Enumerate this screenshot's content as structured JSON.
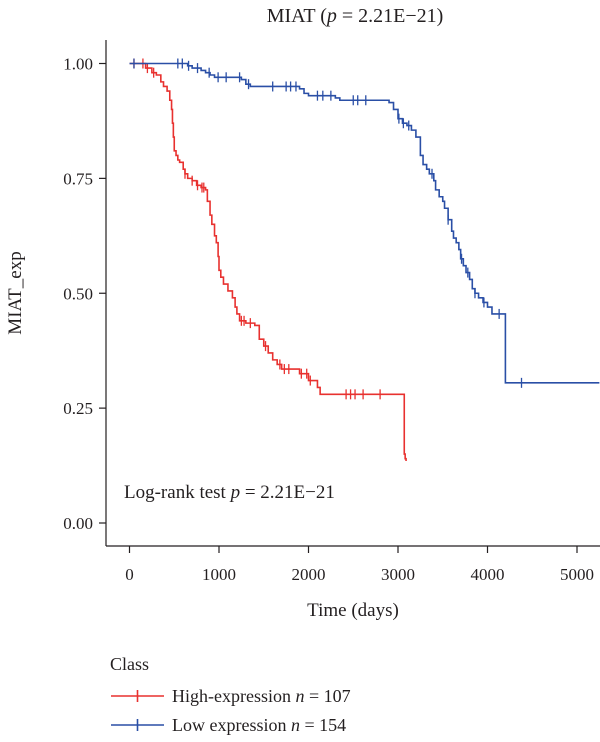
{
  "chart_data": {
    "type": "line",
    "subtype": "kaplan-meier",
    "title": {
      "prefix": "MIAT (",
      "p_symbol": "p",
      "equals_value": " = 2.21E−21)"
    },
    "xlabel": "Time (days)",
    "ylabel": "MIAT_exp",
    "xlim": [
      -200,
      5250
    ],
    "ylim": [
      -0.05,
      1.05
    ],
    "x_ticks": [
      0,
      1000,
      2000,
      3000,
      4000,
      5000
    ],
    "x_tick_labels": [
      "0",
      "1000",
      "2000",
      "3000",
      "4000",
      "5000"
    ],
    "y_ticks": [
      0,
      0.25,
      0.5,
      0.75,
      1.0
    ],
    "y_tick_labels": [
      "0.00",
      "0.25",
      "0.50",
      "0.75",
      "1.00"
    ],
    "annotation": {
      "prefix": "Log-rank test ",
      "p_symbol": "p",
      "equals_value": " = 2.21E−21"
    },
    "legend": {
      "title": "Class",
      "position": "bottom-left",
      "entries": [
        {
          "label": "High-expression ",
          "n_symbol": "n",
          "n_value": " = 107",
          "color": "#e8312f"
        },
        {
          "label": "Low expression ",
          "n_symbol": "n",
          "n_value": " = 154",
          "color": "#2a4fa6"
        }
      ]
    },
    "series": [
      {
        "name": "High-expression",
        "color": "#e8312f",
        "steps": [
          [
            0,
            1.0
          ],
          [
            100,
            1.0
          ],
          [
            180,
            0.99
          ],
          [
            250,
            0.98
          ],
          [
            300,
            0.975
          ],
          [
            350,
            0.96
          ],
          [
            380,
            0.95
          ],
          [
            420,
            0.94
          ],
          [
            450,
            0.92
          ],
          [
            470,
            0.9
          ],
          [
            480,
            0.87
          ],
          [
            490,
            0.84
          ],
          [
            500,
            0.81
          ],
          [
            520,
            0.8
          ],
          [
            540,
            0.79
          ],
          [
            560,
            0.785
          ],
          [
            600,
            0.77
          ],
          [
            620,
            0.76
          ],
          [
            650,
            0.75
          ],
          [
            700,
            0.745
          ],
          [
            750,
            0.735
          ],
          [
            800,
            0.73
          ],
          [
            850,
            0.725
          ],
          [
            870,
            0.7
          ],
          [
            900,
            0.67
          ],
          [
            920,
            0.65
          ],
          [
            950,
            0.625
          ],
          [
            970,
            0.61
          ],
          [
            990,
            0.58
          ],
          [
            1000,
            0.55
          ],
          [
            1020,
            0.535
          ],
          [
            1050,
            0.52
          ],
          [
            1100,
            0.505
          ],
          [
            1150,
            0.49
          ],
          [
            1180,
            0.47
          ],
          [
            1200,
            0.455
          ],
          [
            1230,
            0.44
          ],
          [
            1300,
            0.435
          ],
          [
            1400,
            0.43
          ],
          [
            1450,
            0.4
          ],
          [
            1500,
            0.385
          ],
          [
            1550,
            0.37
          ],
          [
            1600,
            0.355
          ],
          [
            1650,
            0.345
          ],
          [
            1700,
            0.335
          ],
          [
            1900,
            0.325
          ],
          [
            2000,
            0.31
          ],
          [
            2100,
            0.295
          ],
          [
            2130,
            0.28
          ],
          [
            3070,
            0.28
          ],
          [
            3070,
            0.15
          ],
          [
            3080,
            0.14
          ],
          [
            3090,
            0.135
          ]
        ],
        "censor_times": [
          50,
          150,
          200,
          270,
          620,
          700,
          760,
          810,
          830,
          1250,
          1280,
          1350,
          1520,
          1680,
          1730,
          1780,
          1920,
          1980,
          2020,
          2420,
          2470,
          2520,
          2610,
          2800
        ]
      },
      {
        "name": "Low expression",
        "color": "#2a4fa6",
        "steps": [
          [
            0,
            1.0
          ],
          [
            620,
            1.0
          ],
          [
            650,
            0.995
          ],
          [
            700,
            0.99
          ],
          [
            800,
            0.985
          ],
          [
            850,
            0.98
          ],
          [
            900,
            0.975
          ],
          [
            950,
            0.97
          ],
          [
            1250,
            0.965
          ],
          [
            1300,
            0.955
          ],
          [
            1350,
            0.95
          ],
          [
            1900,
            0.945
          ],
          [
            1950,
            0.935
          ],
          [
            2000,
            0.93
          ],
          [
            2300,
            0.925
          ],
          [
            2350,
            0.92
          ],
          [
            2900,
            0.915
          ],
          [
            2950,
            0.9
          ],
          [
            3000,
            0.88
          ],
          [
            3050,
            0.87
          ],
          [
            3100,
            0.865
          ],
          [
            3150,
            0.855
          ],
          [
            3200,
            0.84
          ],
          [
            3250,
            0.8
          ],
          [
            3280,
            0.78
          ],
          [
            3320,
            0.77
          ],
          [
            3350,
            0.76
          ],
          [
            3400,
            0.745
          ],
          [
            3420,
            0.725
          ],
          [
            3460,
            0.71
          ],
          [
            3500,
            0.7
          ],
          [
            3520,
            0.685
          ],
          [
            3560,
            0.66
          ],
          [
            3600,
            0.635
          ],
          [
            3620,
            0.62
          ],
          [
            3650,
            0.61
          ],
          [
            3680,
            0.595
          ],
          [
            3700,
            0.575
          ],
          [
            3730,
            0.56
          ],
          [
            3760,
            0.545
          ],
          [
            3800,
            0.53
          ],
          [
            3830,
            0.51
          ],
          [
            3860,
            0.5
          ],
          [
            3900,
            0.49
          ],
          [
            3950,
            0.48
          ],
          [
            4000,
            0.47
          ],
          [
            4050,
            0.455
          ],
          [
            4100,
            0.455
          ],
          [
            4200,
            0.455
          ],
          [
            4200,
            0.305
          ],
          [
            5250,
            0.305
          ]
        ],
        "censor_times": [
          50,
          540,
          590,
          660,
          760,
          890,
          990,
          1080,
          1230,
          1330,
          1600,
          1750,
          1800,
          1860,
          2100,
          2160,
          2250,
          2500,
          2550,
          2640,
          3010,
          3060,
          3120,
          3380,
          3560,
          3710,
          3780,
          3860,
          3960,
          4130,
          4380
        ]
      }
    ]
  }
}
